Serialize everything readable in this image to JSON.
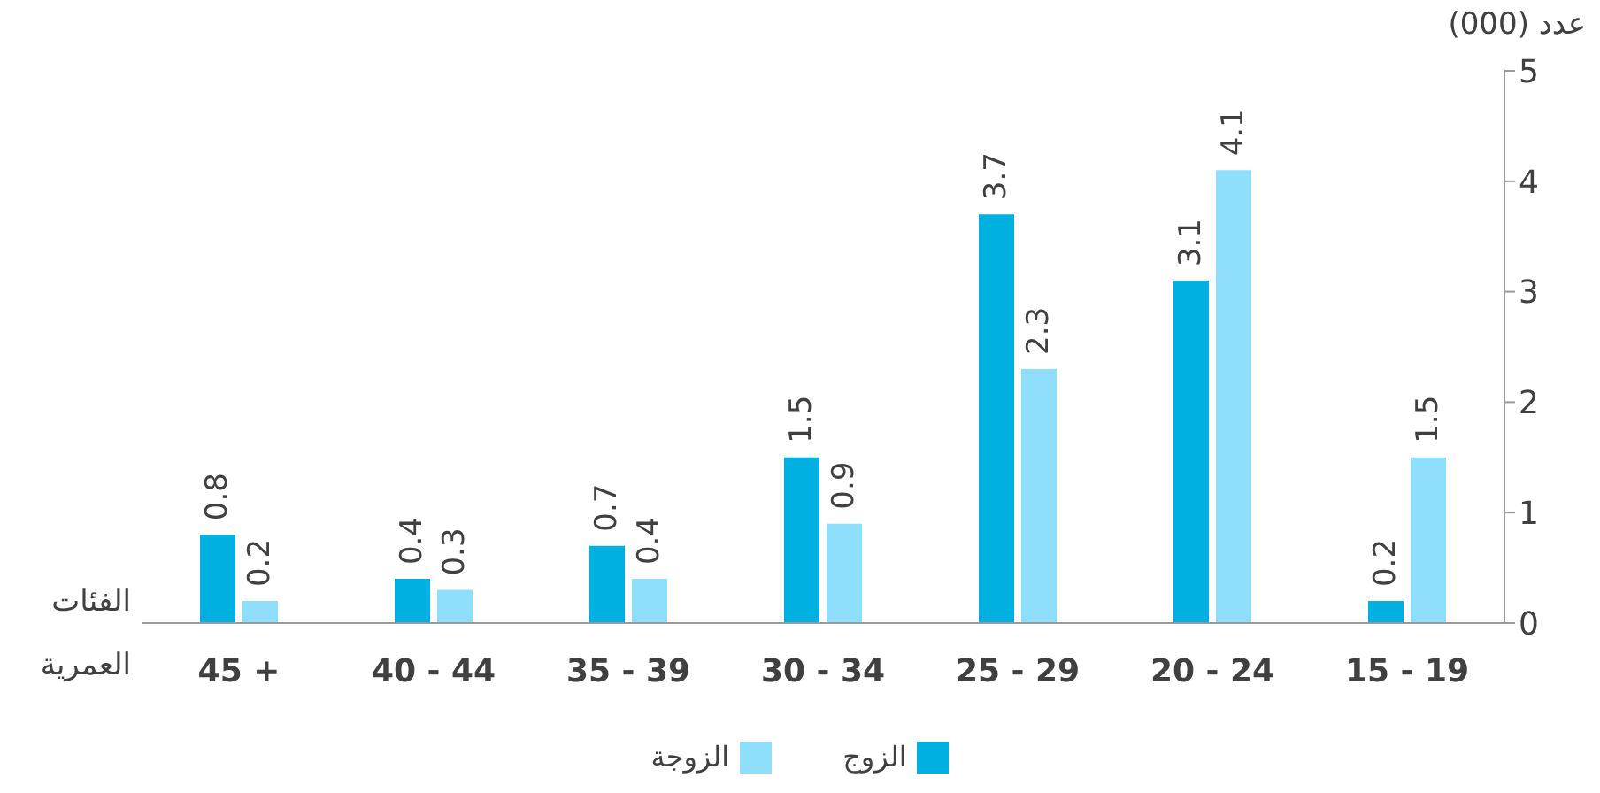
{
  "chart_data": {
    "type": "bar",
    "ylabel": "عدد (000)",
    "xlabel": "الفئات العمرية",
    "categories": [
      "45 +",
      "40 - 44",
      "35 - 39",
      "30 - 34",
      "25 - 29",
      "20 - 24",
      "15 - 19"
    ],
    "series": [
      {
        "name": "الزوج",
        "color": "#00b0e0",
        "values": [
          0.8,
          0.4,
          0.7,
          1.5,
          3.7,
          3.1,
          0.2
        ]
      },
      {
        "name": "الزوجة",
        "color": "#8fdffc",
        "values": [
          0.2,
          0.3,
          0.4,
          0.9,
          2.3,
          4.1,
          1.5
        ]
      }
    ],
    "ylim": [
      0,
      5
    ],
    "yticks": [
      0,
      1,
      2,
      3,
      4,
      5
    ],
    "grid": false,
    "legend": "bottom",
    "data_labels": true
  }
}
